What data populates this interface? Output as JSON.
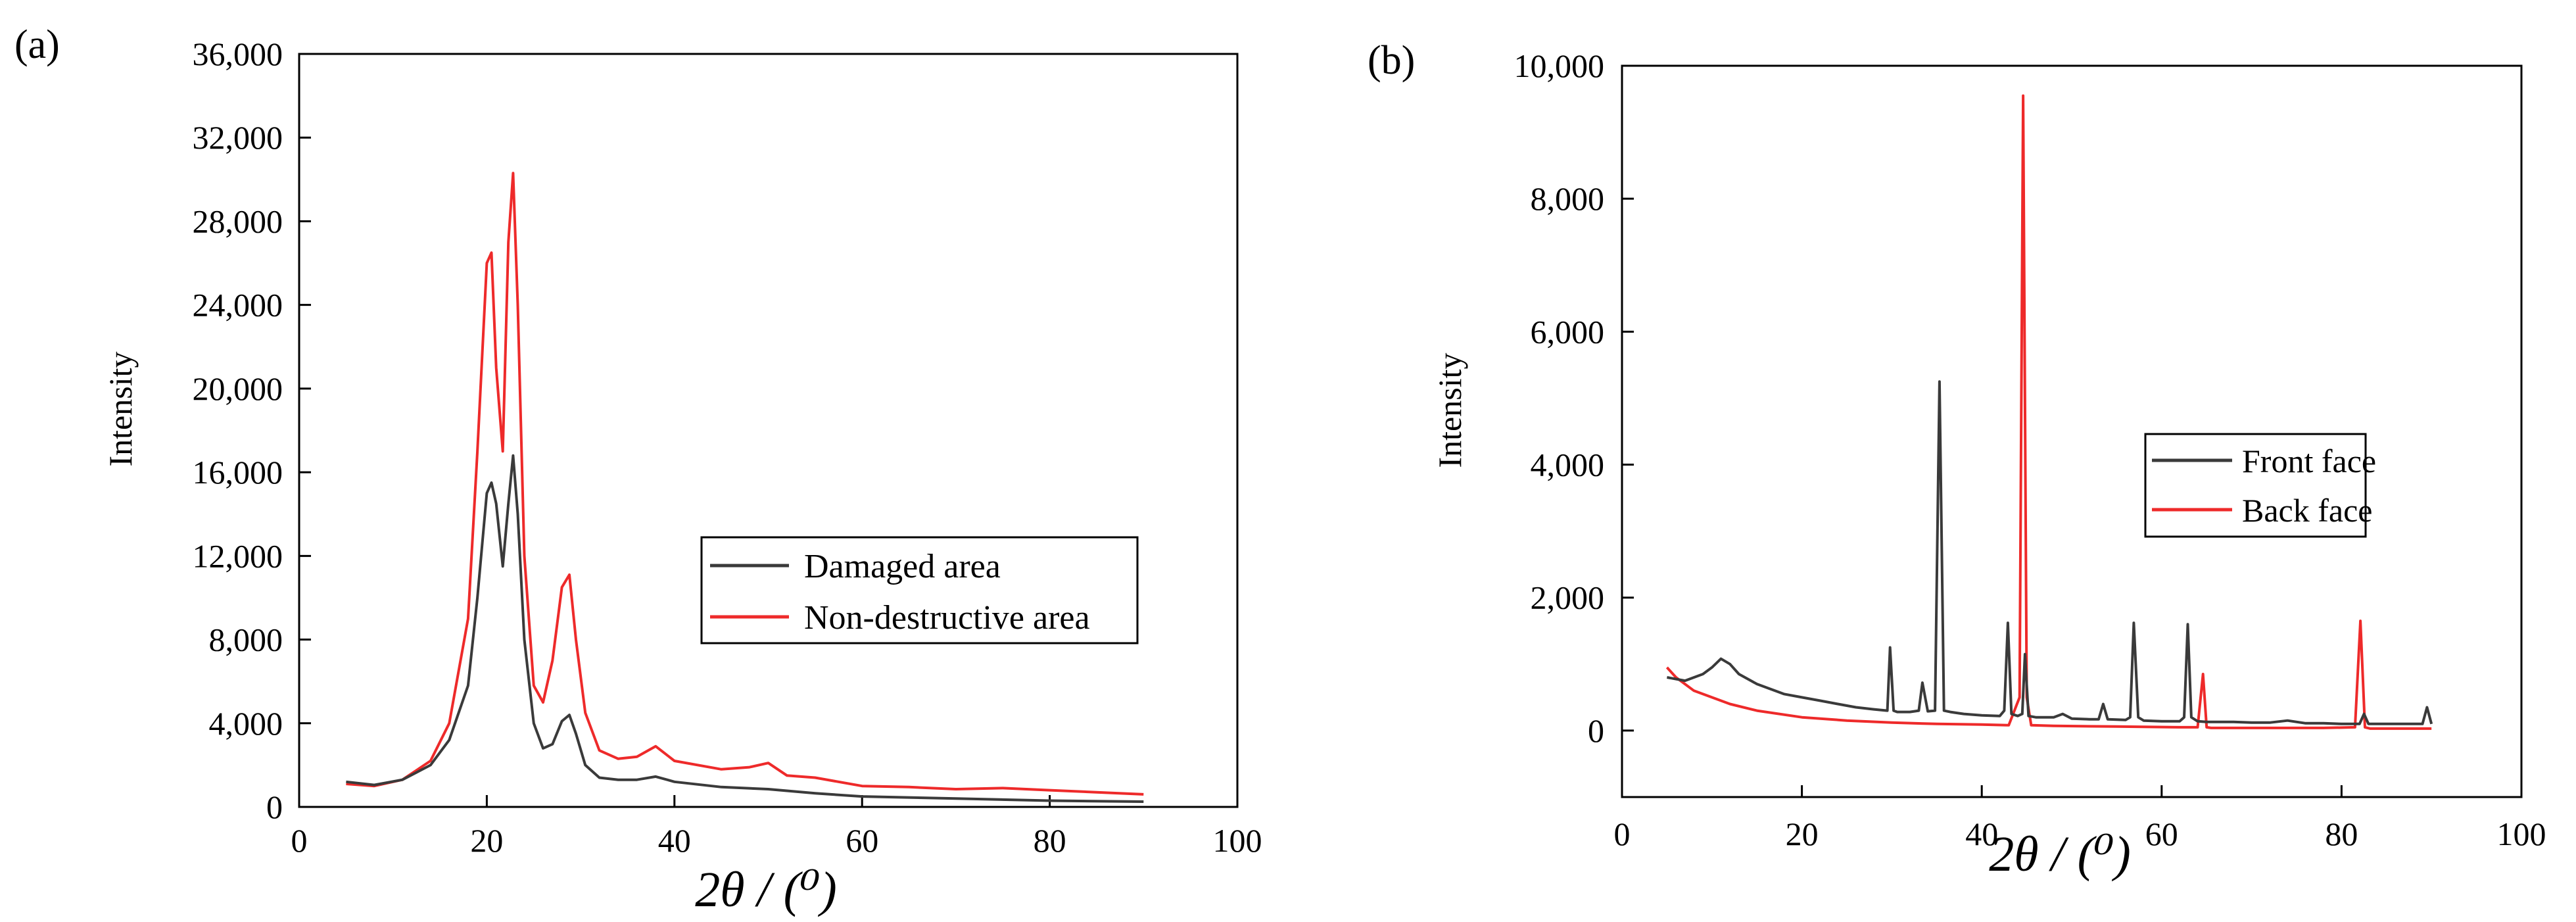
{
  "chart_data": [
    {
      "panel_label": "(a)",
      "type": "line",
      "xlabel": "2θ / (⁰)",
      "ylabel": "Intensity",
      "xlim": [
        0,
        100
      ],
      "ylim": [
        0,
        36000
      ],
      "xticks": [
        0,
        20,
        40,
        60,
        80,
        100
      ],
      "xtick_labels": [
        "0",
        "20",
        "40",
        "60",
        "80",
        "100"
      ],
      "yticks": [
        0,
        4000,
        8000,
        12000,
        16000,
        20000,
        24000,
        28000,
        32000,
        36000
      ],
      "ytick_labels": [
        "0",
        "4,000",
        "8,000",
        "12,000",
        "16,000",
        "20,000",
        "24,000",
        "28,000",
        "32,000",
        "36,000"
      ],
      "legend_position": "center-right",
      "series": [
        {
          "name": "Damaged area",
          "color": "#3a3a3a",
          "x": [
            5,
            8,
            11,
            14,
            16,
            18,
            19,
            20,
            20.5,
            21,
            21.7,
            22.3,
            22.8,
            23.3,
            24,
            25,
            26,
            27,
            28,
            28.8,
            29.5,
            30.5,
            32,
            34,
            36,
            38,
            40,
            45,
            50,
            55,
            60,
            70,
            80,
            90
          ],
          "y": [
            1200,
            1050,
            1300,
            2000,
            3200,
            5800,
            10000,
            15000,
            15500,
            14500,
            11500,
            14500,
            16800,
            14000,
            8000,
            4000,
            2800,
            3000,
            4100,
            4400,
            3500,
            2000,
            1400,
            1300,
            1300,
            1450,
            1200,
            950,
            850,
            650,
            500,
            400,
            300,
            250
          ]
        },
        {
          "name": "Non-destructive area",
          "color": "#ee2a2a",
          "x": [
            5,
            8,
            11,
            14,
            16,
            18,
            19,
            20,
            20.5,
            21,
            21.7,
            22.3,
            22.8,
            23.3,
            24,
            25,
            26,
            27,
            28,
            28.8,
            29.5,
            30.5,
            32,
            34,
            36,
            38,
            40,
            45,
            48,
            50,
            52,
            55,
            60,
            65,
            70,
            75,
            80,
            85,
            90
          ],
          "y": [
            1100,
            1000,
            1300,
            2200,
            4000,
            9000,
            17000,
            26000,
            26500,
            21000,
            17000,
            27000,
            30300,
            24000,
            12000,
            5800,
            5000,
            7000,
            10500,
            11100,
            8000,
            4500,
            2700,
            2300,
            2400,
            2900,
            2200,
            1800,
            1900,
            2100,
            1500,
            1400,
            1000,
            950,
            850,
            900,
            800,
            700,
            600
          ]
        }
      ]
    },
    {
      "panel_label": "(b)",
      "type": "line",
      "xlabel": "2θ / (⁰)",
      "ylabel": "Intensity",
      "xlim": [
        0,
        100
      ],
      "ylim": [
        -1000,
        10000
      ],
      "xticks": [
        0,
        20,
        40,
        60,
        80,
        100
      ],
      "xtick_labels": [
        "0",
        "20",
        "40",
        "60",
        "80",
        "100"
      ],
      "yticks": [
        0,
        2000,
        4000,
        6000,
        8000,
        10000
      ],
      "ytick_labels": [
        "0",
        "2,000",
        "4,000",
        "6,000",
        "8,000",
        "10,000"
      ],
      "legend_position": "center-right",
      "series": [
        {
          "name": "Front face",
          "color": "#3a3a3a",
          "x": [
            5,
            7,
            9,
            10,
            11,
            12,
            13,
            15,
            18,
            20,
            22,
            24,
            26,
            28,
            29.5,
            29.8,
            30.2,
            30.6,
            32,
            33,
            33.4,
            34,
            34.8,
            35.3,
            35.8,
            36.5,
            38,
            40,
            42,
            42.5,
            42.9,
            43.3,
            44,
            44.5,
            44.8,
            45.2,
            46,
            48,
            49,
            50,
            52,
            53,
            53.5,
            54,
            56,
            56.5,
            56.9,
            57.4,
            58,
            60,
            62,
            62.5,
            62.9,
            63.3,
            64,
            65,
            68,
            70,
            72,
            74,
            76,
            78,
            80,
            82,
            82.5,
            83,
            85,
            87,
            89,
            89.5,
            90
          ],
          "y": [
            800,
            750,
            850,
            950,
            1080,
            1000,
            850,
            700,
            550,
            500,
            450,
            400,
            350,
            320,
            300,
            1250,
            300,
            280,
            280,
            300,
            720,
            290,
            300,
            5250,
            300,
            280,
            250,
            230,
            220,
            300,
            1620,
            250,
            220,
            250,
            1150,
            220,
            200,
            200,
            250,
            180,
            170,
            170,
            400,
            170,
            160,
            200,
            1620,
            200,
            150,
            140,
            140,
            200,
            1600,
            200,
            140,
            130,
            130,
            120,
            120,
            150,
            110,
            110,
            100,
            100,
            250,
            100,
            100,
            100,
            100,
            350,
            100
          ]
        },
        {
          "name": "Back face",
          "color": "#ee2a2a",
          "x": [
            5,
            6,
            8,
            10,
            12,
            15,
            20,
            25,
            30,
            35,
            40,
            43,
            44.2,
            44.6,
            45,
            45.5,
            48,
            55,
            62,
            64,
            64.6,
            65,
            65.5,
            67,
            72,
            78,
            81.5,
            82.1,
            82.6,
            83.2,
            86,
            90
          ],
          "y": [
            950,
            800,
            600,
            500,
            400,
            300,
            200,
            150,
            120,
            100,
            90,
            80,
            500,
            9550,
            500,
            80,
            70,
            60,
            50,
            50,
            850,
            50,
            40,
            40,
            40,
            40,
            50,
            1650,
            50,
            30,
            30,
            30
          ]
        }
      ]
    }
  ]
}
